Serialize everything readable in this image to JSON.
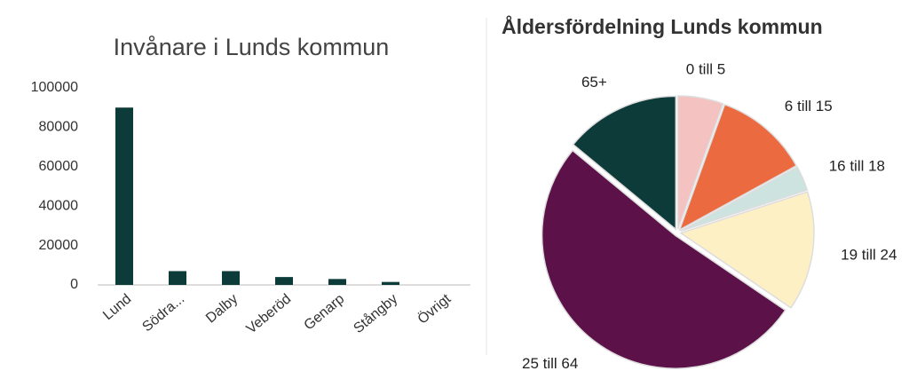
{
  "chart_data": [
    {
      "type": "bar",
      "title": "Invånare i Lunds kommun",
      "categories": [
        "Lund",
        "Södra...",
        "Dalby",
        "Veberöd",
        "Genarp",
        "Stångby",
        "Övrigt"
      ],
      "values": [
        90000,
        7000,
        7000,
        4000,
        3000,
        1500,
        0
      ],
      "color": "#0d3b3a",
      "ylim": [
        0,
        100000
      ],
      "yticks": [
        0,
        20000,
        40000,
        60000,
        80000,
        100000
      ],
      "grid": false
    },
    {
      "type": "pie",
      "title": "Åldersfördelning Lunds kommun",
      "categories": [
        "0 till 5",
        "6 till 15",
        "16 till 18",
        "19 till 24",
        "25 till 64",
        "65+"
      ],
      "values": [
        5.5,
        11.5,
        3,
        14.5,
        51.5,
        14
      ],
      "colors": [
        "#f4c2c0",
        "#eb6a40",
        "#cde3e0",
        "#fdf0c4",
        "#5c1249",
        "#0d3b3a"
      ]
    }
  ]
}
